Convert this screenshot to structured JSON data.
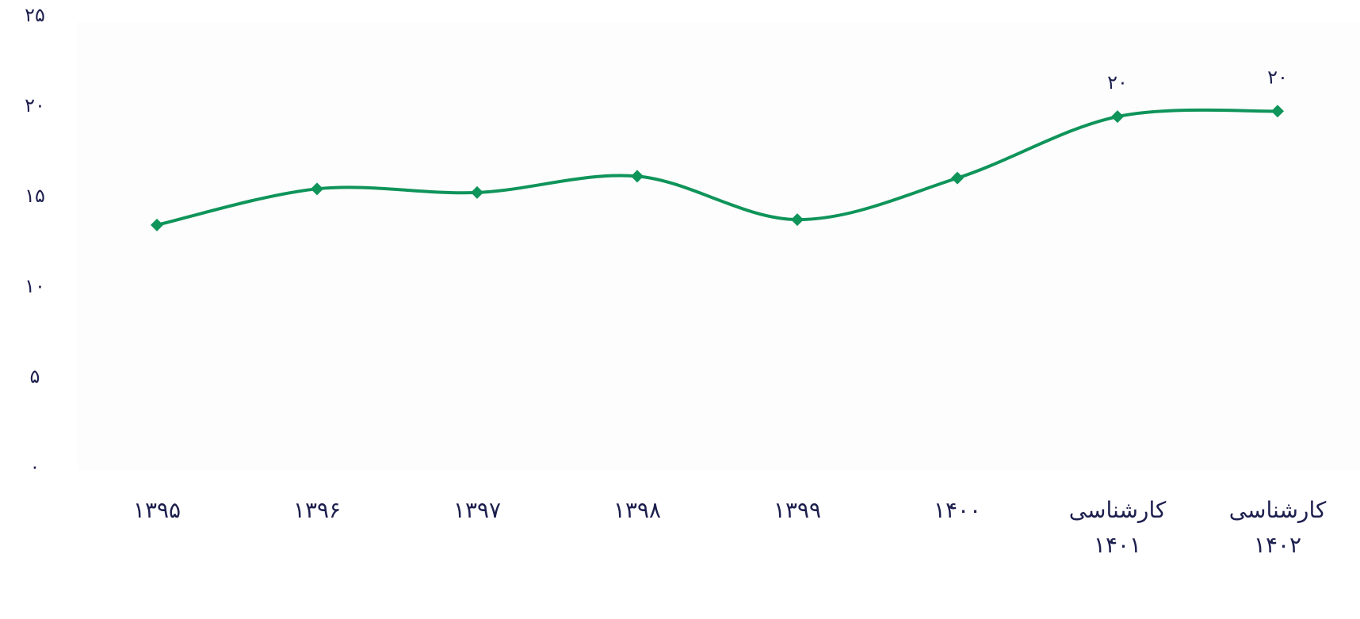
{
  "chart_data": {
    "type": "line",
    "categories": [
      "۱۳۹۵",
      "۱۳۹۶",
      "۱۳۹۷",
      "۱۳۹۸",
      "۱۳۹۹",
      "۱۴۰۰",
      "کارشناسی\n۱۴۰۱",
      "کارشناسی\n۱۴۰۲"
    ],
    "series": [
      {
        "color": "#0f945a",
        "values": [
          13.6,
          15.6,
          15.4,
          16.3,
          13.9,
          16.2,
          19.6,
          19.9
        ],
        "value_labels": [
          null,
          null,
          null,
          null,
          null,
          null,
          "۲۰",
          "۲۰"
        ]
      }
    ],
    "ylim": [
      0,
      25
    ],
    "yticks": [
      {
        "value": 0,
        "label": "۰"
      },
      {
        "value": 5,
        "label": "۵"
      },
      {
        "value": 10,
        "label": "۱۰"
      },
      {
        "value": 15,
        "label": "۱۵"
      },
      {
        "value": 20,
        "label": "۲۰"
      },
      {
        "value": 25,
        "label": "۲۵"
      }
    ],
    "smooth": true,
    "marker": "diamond"
  }
}
